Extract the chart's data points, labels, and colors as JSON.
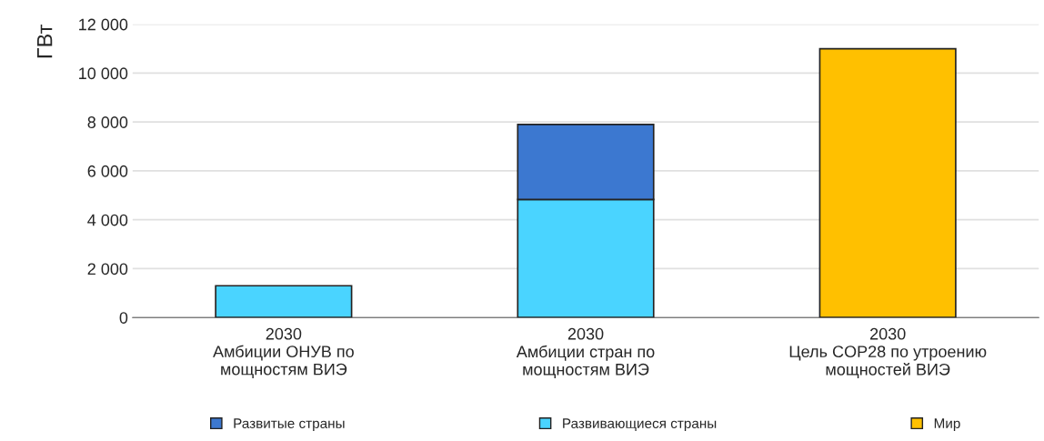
{
  "chart_data": {
    "type": "bar",
    "stacked": true,
    "ylabel": "ГВт",
    "categories": [
      "2030\nАмбиции ОНУВ по\nмощностям ВИЭ",
      "2030\nАмбиции стран по\nмощностям ВИЭ",
      "2030\nЦель COP28 по утроению\nмощностей ВИЭ"
    ],
    "series": [
      {
        "name": "Развивающиеся страны",
        "color": "#4ad4ff",
        "values": [
          1300,
          4830,
          null
        ]
      },
      {
        "name": "Развитые страны",
        "color": "#3c78d0",
        "values": [
          null,
          3070,
          null
        ]
      },
      {
        "name": "Мир",
        "color": "#ffc000",
        "values": [
          null,
          null,
          11000
        ]
      }
    ],
    "ylim": [
      0,
      12000
    ],
    "yticks": [
      0,
      {
        "value": 2000,
        "label": "2 000"
      },
      {
        "value": 4000,
        "label": "4 000"
      },
      {
        "value": 6000,
        "label": "6 000"
      },
      {
        "value": 8000,
        "label": "8 000"
      },
      {
        "value": 10000,
        "label": "10 000"
      },
      {
        "value": 12000,
        "label": "12 000"
      }
    ],
    "grid": "y",
    "legend": "bottom"
  }
}
